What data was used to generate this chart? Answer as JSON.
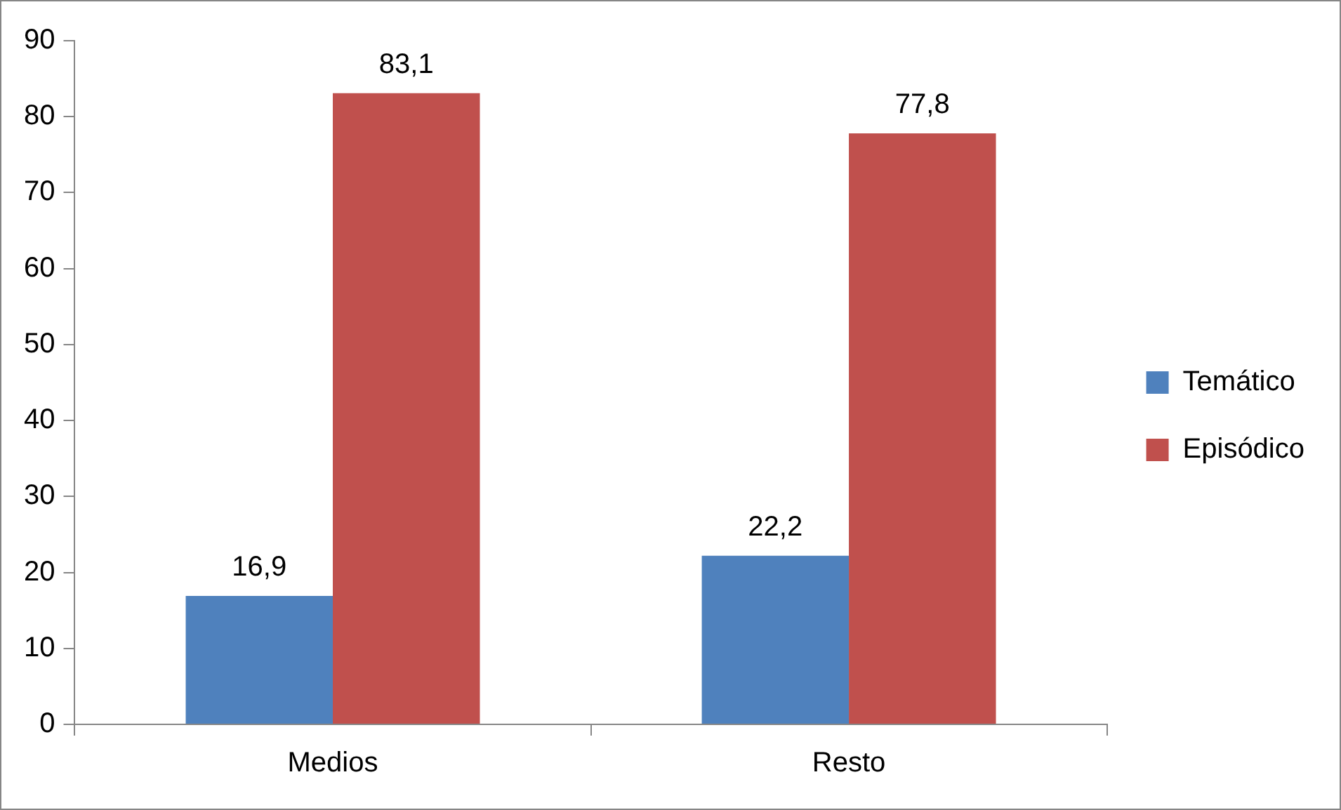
{
  "chart_data": {
    "type": "bar",
    "categories": [
      "Medios",
      "Resto"
    ],
    "series": [
      {
        "name": "Temático",
        "color": "#4f81bd",
        "values": [
          16.9,
          22.2
        ],
        "value_labels": [
          "16,9",
          "22,2"
        ]
      },
      {
        "name": "Episódico",
        "color": "#c0504d",
        "values": [
          83.1,
          77.8
        ],
        "value_labels": [
          "83,1",
          "77,8"
        ]
      }
    ],
    "ylim": [
      0,
      90
    ],
    "yticks": [
      0,
      10,
      20,
      30,
      40,
      50,
      60,
      70,
      80,
      90
    ],
    "grid": false,
    "legend": "right"
  }
}
